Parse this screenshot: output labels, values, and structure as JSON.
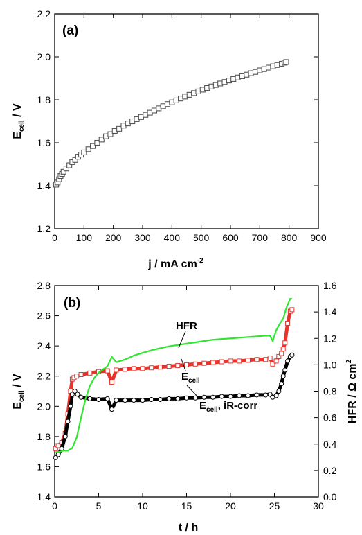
{
  "chart_data": [
    {
      "type": "scatter",
      "panel_label": "(a)",
      "xlabel": "j / mA cm",
      "xlabel_sup": "-2",
      "ylabel": "E",
      "ylabel_sub": "cell",
      "ylabel_suffix": " / V",
      "xlim": [
        0,
        900
      ],
      "ylim": [
        1.2,
        2.2
      ],
      "xticks": [
        "0",
        "100",
        "200",
        "300",
        "400",
        "500",
        "600",
        "700",
        "800",
        "900"
      ],
      "yticks": [
        "1.2",
        "1.4",
        "1.6",
        "1.8",
        "2.0",
        "2.2"
      ],
      "marker": "open-square",
      "marker_color": "#555555",
      "series": [
        {
          "x": [
            5,
            10,
            15,
            20,
            25,
            30,
            40,
            50,
            60,
            70,
            80,
            90,
            100,
            115,
            130,
            145,
            160,
            175,
            190,
            205,
            220,
            235,
            250,
            265,
            280,
            295,
            310,
            325,
            340,
            355,
            370,
            385,
            400,
            415,
            430,
            445,
            460,
            475,
            490,
            505,
            520,
            535,
            550,
            565,
            580,
            595,
            610,
            625,
            640,
            655,
            670,
            685,
            700,
            715,
            730,
            745,
            760,
            775,
            785,
            790
          ],
          "y": [
            1.405,
            1.415,
            1.43,
            1.445,
            1.455,
            1.465,
            1.48,
            1.495,
            1.51,
            1.52,
            1.535,
            1.545,
            1.555,
            1.57,
            1.585,
            1.6,
            1.615,
            1.63,
            1.64,
            1.655,
            1.665,
            1.68,
            1.69,
            1.7,
            1.71,
            1.72,
            1.73,
            1.74,
            1.75,
            1.76,
            1.77,
            1.78,
            1.788,
            1.797,
            1.806,
            1.815,
            1.823,
            1.831,
            1.839,
            1.847,
            1.855,
            1.862,
            1.869,
            1.876,
            1.883,
            1.89,
            1.897,
            1.904,
            1.91,
            1.917,
            1.924,
            1.93,
            1.937,
            1.943,
            1.95,
            1.956,
            1.962,
            1.968,
            1.973,
            1.976
          ]
        }
      ]
    },
    {
      "type": "line",
      "panel_label": "(b)",
      "xlabel": "t / h",
      "ylabel": "E",
      "ylabel_sub": "cell",
      "ylabel_suffix": " / V",
      "y2label": "HFR / Ω cm",
      "y2label_sup": "2",
      "xlim": [
        0,
        30
      ],
      "ylim": [
        1.4,
        2.8
      ],
      "y2lim": [
        0.0,
        1.6
      ],
      "xticks": [
        "0",
        "5",
        "10",
        "15",
        "20",
        "25",
        "30"
      ],
      "yticks": [
        "1.4",
        "1.6",
        "1.8",
        "2.0",
        "2.2",
        "2.4",
        "2.6",
        "2.8"
      ],
      "y2ticks": [
        "0.0",
        "0.2",
        "0.4",
        "0.6",
        "0.8",
        "1.0",
        "1.2",
        "1.4",
        "1.6"
      ],
      "annotations": [
        {
          "text": "HFR",
          "sub": "",
          "suffix": ""
        },
        {
          "text": "E",
          "sub": "cell",
          "suffix": ""
        },
        {
          "text": "E",
          "sub": "cell",
          "suffix": ", iR-corr"
        }
      ],
      "series": [
        {
          "label": "Ecell",
          "axis": "left",
          "color": "#e8322a",
          "marker": "open-square",
          "x": [
            0.1,
            0.4,
            0.8,
            1.2,
            1.5,
            1.8,
            2.0,
            2.2,
            2.5,
            3,
            4,
            5,
            6,
            6.5,
            7,
            8,
            9,
            10,
            11,
            12,
            13,
            14,
            15,
            16,
            17,
            18,
            19,
            20,
            21,
            22,
            23,
            24,
            24.5,
            24.8,
            25.2,
            25.5,
            25.8,
            26.0,
            26.2,
            26.5,
            26.8,
            27.0
          ],
          "y": [
            1.72,
            1.74,
            1.76,
            1.82,
            1.95,
            2.1,
            2.18,
            2.19,
            2.2,
            2.21,
            2.22,
            2.23,
            2.235,
            2.16,
            2.24,
            2.245,
            2.25,
            2.25,
            2.255,
            2.26,
            2.265,
            2.27,
            2.275,
            2.28,
            2.285,
            2.29,
            2.295,
            2.3,
            2.3,
            2.305,
            2.31,
            2.31,
            2.32,
            2.28,
            2.3,
            2.33,
            2.35,
            2.38,
            2.42,
            2.55,
            2.63,
            2.64
          ]
        },
        {
          "label": "Ecell, iR-corr",
          "axis": "left",
          "color": "#000000",
          "marker": "open-circle",
          "x": [
            0.1,
            0.4,
            0.8,
            1.2,
            1.5,
            1.8,
            2.0,
            2.3,
            2.6,
            3,
            4,
            5,
            6,
            6.5,
            7,
            8,
            9,
            10,
            11,
            12,
            13,
            14,
            15,
            16,
            17,
            18,
            19,
            20,
            21,
            22,
            23,
            24,
            24.5,
            24.8,
            25.2,
            25.5,
            25.8,
            26.0,
            26.2,
            26.5,
            26.8,
            27.0
          ],
          "y": [
            1.66,
            1.68,
            1.72,
            1.8,
            1.9,
            2.0,
            2.08,
            2.1,
            2.08,
            2.06,
            2.05,
            2.045,
            2.05,
            1.98,
            2.04,
            2.04,
            2.04,
            2.04,
            2.045,
            2.045,
            2.05,
            2.05,
            2.055,
            2.055,
            2.06,
            2.06,
            2.065,
            2.065,
            2.07,
            2.07,
            2.075,
            2.075,
            2.08,
            2.06,
            2.07,
            2.1,
            2.15,
            2.2,
            2.24,
            2.3,
            2.33,
            2.34
          ]
        },
        {
          "label": "HFR",
          "axis": "right",
          "color": "#2ee62e",
          "marker": "none",
          "x": [
            0.1,
            0.5,
            1.0,
            1.5,
            2.0,
            2.5,
            3.0,
            3.5,
            4.0,
            4.5,
            5.0,
            6.0,
            6.5,
            7,
            8,
            9,
            10,
            11,
            12,
            13,
            14,
            15,
            16,
            17,
            18,
            19,
            20,
            21,
            22,
            23,
            24,
            24.5,
            24.8,
            25.2,
            25.6,
            26.0,
            26.4,
            26.8,
            27.0
          ],
          "y": [
            0.34,
            0.34,
            0.35,
            0.35,
            0.37,
            0.45,
            0.6,
            0.74,
            0.84,
            0.9,
            0.94,
            0.99,
            1.06,
            1.02,
            1.04,
            1.07,
            1.09,
            1.11,
            1.125,
            1.14,
            1.15,
            1.16,
            1.17,
            1.18,
            1.19,
            1.195,
            1.2,
            1.205,
            1.21,
            1.215,
            1.22,
            1.22,
            1.18,
            1.26,
            1.31,
            1.35,
            1.44,
            1.5,
            1.5
          ]
        }
      ]
    }
  ]
}
